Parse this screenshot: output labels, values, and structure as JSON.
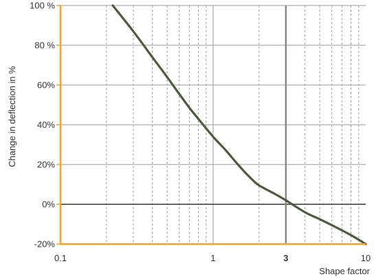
{
  "chart_data": {
    "type": "line",
    "title": "",
    "xlabel": "Shape factor",
    "ylabel": "Change in deflection in %",
    "x_scale": "log",
    "xlim": [
      0.1,
      10
    ],
    "ylim": [
      -20,
      100
    ],
    "x_ticks": [
      {
        "value": 0.1,
        "label": "0.1",
        "bold": false
      },
      {
        "value": 1,
        "label": "1",
        "bold": false
      },
      {
        "value": 3,
        "label": "3",
        "bold": true
      },
      {
        "value": 10,
        "label": "10",
        "bold": false
      }
    ],
    "y_ticks": [
      {
        "value": 100,
        "label": "100 %"
      },
      {
        "value": 80,
        "label": "80 %"
      },
      {
        "value": 60,
        "label": "60%"
      },
      {
        "value": 40,
        "label": "40%"
      },
      {
        "value": 20,
        "label": "20%"
      },
      {
        "value": 0,
        "label": "0%"
      },
      {
        "value": -20,
        "label": "-20%"
      }
    ],
    "grid": true,
    "highlight_x": 3,
    "series": [
      {
        "x": [
          0.22,
          0.3,
          0.4,
          0.5,
          0.6,
          0.7,
          0.8,
          1.0,
          1.2,
          1.4,
          1.6,
          1.8,
          2.0,
          2.5,
          3.0,
          4.0,
          5.0,
          6.0,
          8.0,
          10.0
        ],
        "y": [
          100,
          87,
          74,
          64,
          55.5,
          48.5,
          43,
          34,
          27.5,
          21.5,
          16.5,
          12.5,
          9.5,
          5.5,
          2,
          -4,
          -7.5,
          -10.5,
          -15.5,
          -20
        ]
      }
    ],
    "colors": {
      "line": "#4f5a3d",
      "axis": "#f5a030",
      "grid": "#9a9a9a",
      "highlight": "#888888",
      "zero_line": "#666666"
    }
  }
}
